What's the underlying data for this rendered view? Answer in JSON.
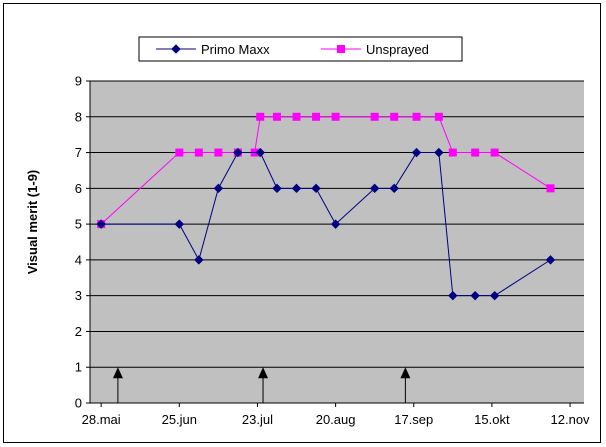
{
  "chart_data": {
    "type": "line",
    "ylabel": "Visual merit (1-9)",
    "ylim": [
      0,
      9
    ],
    "yticks": [
      "0",
      "1",
      "2",
      "3",
      "4",
      "5",
      "6",
      "7",
      "8",
      "9"
    ],
    "xlim": [
      "2001-05-24",
      "2001-11-17"
    ],
    "xticks": [
      {
        "label": "28.mai",
        "date": "2001-05-28"
      },
      {
        "label": "25.jun",
        "date": "2001-06-25"
      },
      {
        "label": "23.jul",
        "date": "2001-07-23"
      },
      {
        "label": "20.aug",
        "date": "2001-08-20"
      },
      {
        "label": "17.sep",
        "date": "2001-09-17"
      },
      {
        "label": "15.okt",
        "date": "2001-10-15"
      },
      {
        "label": "12.nov",
        "date": "2001-11-12"
      }
    ],
    "grid": true,
    "legend_position": "top",
    "plot_background": "#c0c0c0",
    "series": [
      {
        "name": "Primo Maxx",
        "color": "#000080",
        "marker": "diamond",
        "points": [
          {
            "x": "2001-05-28",
            "y": 5
          },
          {
            "x": "2001-06-25",
            "y": 5
          },
          {
            "x": "2001-07-02",
            "y": 4
          },
          {
            "x": "2001-07-09",
            "y": 6
          },
          {
            "x": "2001-07-16",
            "y": 7
          },
          {
            "x": "2001-07-24",
            "y": 7
          },
          {
            "x": "2001-07-30",
            "y": 6
          },
          {
            "x": "2001-08-06",
            "y": 6
          },
          {
            "x": "2001-08-13",
            "y": 6
          },
          {
            "x": "2001-08-20",
            "y": 5
          },
          {
            "x": "2001-09-03",
            "y": 6
          },
          {
            "x": "2001-09-10",
            "y": 6
          },
          {
            "x": "2001-09-18",
            "y": 7
          },
          {
            "x": "2001-09-26",
            "y": 7
          },
          {
            "x": "2001-10-01",
            "y": 3
          },
          {
            "x": "2001-10-09",
            "y": 3
          },
          {
            "x": "2001-10-16",
            "y": 3
          },
          {
            "x": "2001-11-05",
            "y": 4
          }
        ]
      },
      {
        "name": "Unsprayed",
        "color": "#ff00ff",
        "marker": "square",
        "points": [
          {
            "x": "2001-05-28",
            "y": 5
          },
          {
            "x": "2001-06-25",
            "y": 7
          },
          {
            "x": "2001-07-02",
            "y": 7
          },
          {
            "x": "2001-07-09",
            "y": 7
          },
          {
            "x": "2001-07-16",
            "y": 7
          },
          {
            "x": "2001-07-22",
            "y": 7
          },
          {
            "x": "2001-07-24",
            "y": 8
          },
          {
            "x": "2001-07-30",
            "y": 8
          },
          {
            "x": "2001-08-06",
            "y": 8
          },
          {
            "x": "2001-08-13",
            "y": 8
          },
          {
            "x": "2001-08-20",
            "y": 8
          },
          {
            "x": "2001-09-03",
            "y": 8
          },
          {
            "x": "2001-09-10",
            "y": 8
          },
          {
            "x": "2001-09-18",
            "y": 8
          },
          {
            "x": "2001-09-26",
            "y": 8
          },
          {
            "x": "2001-10-01",
            "y": 7
          },
          {
            "x": "2001-10-09",
            "y": 7
          },
          {
            "x": "2001-10-16",
            "y": 7
          },
          {
            "x": "2001-11-05",
            "y": 6
          }
        ]
      }
    ],
    "annotations": [
      {
        "type": "arrow",
        "x": "2001-06-03",
        "y_from": 0,
        "y_to": 1
      },
      {
        "type": "arrow",
        "x": "2001-07-25",
        "y_from": 0,
        "y_to": 1
      },
      {
        "type": "arrow",
        "x": "2001-09-14",
        "y_from": 0,
        "y_to": 1
      }
    ]
  }
}
